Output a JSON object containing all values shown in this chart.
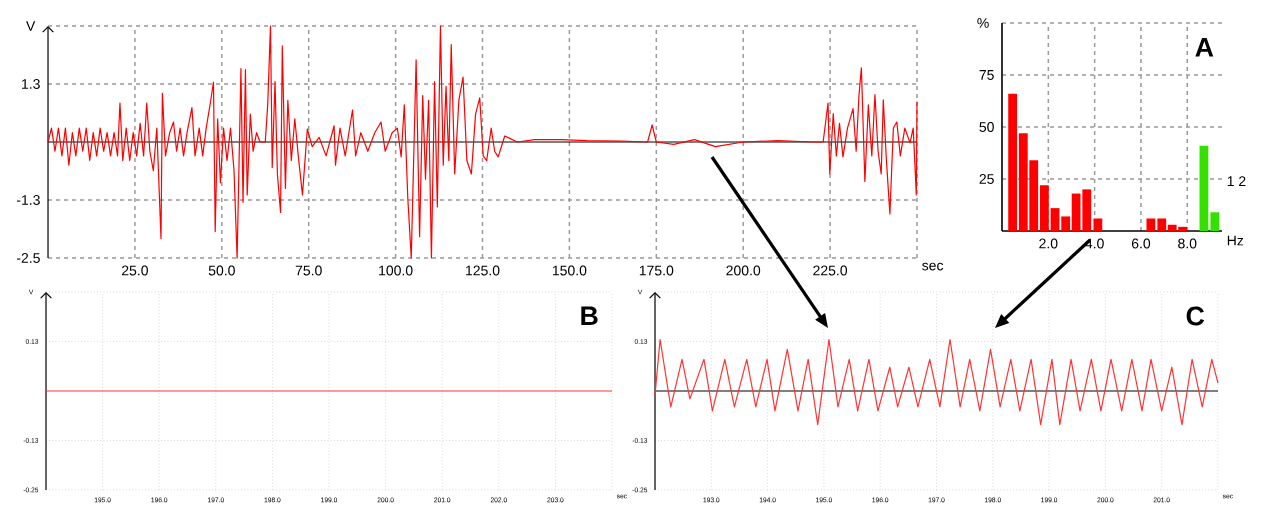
{
  "chart_data": [
    {
      "type": "line",
      "xlabel": "sec",
      "ylabel": "V",
      "grid": true,
      "xlim": [
        0,
        250
      ],
      "ylim": [
        -2.5,
        2.5
      ],
      "xticks": [
        {
          "value": 25,
          "label": "25.0"
        },
        {
          "value": 50,
          "label": "50.0"
        },
        {
          "value": 75,
          "label": "75.0"
        },
        {
          "value": 100,
          "label": "100.0"
        },
        {
          "value": 125,
          "label": "125.0"
        },
        {
          "value": 150,
          "label": "150.0"
        },
        {
          "value": 175,
          "label": "175.0"
        },
        {
          "value": 200,
          "label": "200.0"
        },
        {
          "value": 225,
          "label": "225.0"
        },
        {
          "value": 250,
          "label": null
        }
      ],
      "yticks": [
        -2.5,
        {
          "value": -1.25,
          "label": "-1.3"
        },
        {
          "value": 1.25,
          "label": "1.3"
        },
        {
          "value": 2.5,
          "label": null
        }
      ],
      "series": [
        {
          "color": "#ff0000",
          "x": [
            0,
            1,
            2,
            3,
            4,
            5,
            6,
            7,
            8,
            9,
            10,
            11,
            12,
            13,
            14,
            15,
            16,
            17,
            18,
            19,
            20,
            20.7,
            21.5,
            22.5,
            23.5,
            24.5,
            25.5,
            26.5,
            27.5,
            28.4,
            29.3,
            30.3,
            31.3,
            32.5,
            32.9,
            33.8,
            35,
            36.1,
            37,
            38,
            39,
            40,
            41.4,
            42.3,
            43.5,
            44.5,
            45.5,
            46.7,
            47.6,
            48.1,
            48.8,
            49.6,
            50.5,
            51.5,
            52.5,
            53.5,
            54.4,
            55.5,
            56.1,
            56.8,
            57.3,
            58.2,
            59,
            60,
            61,
            62.5,
            63.2,
            64,
            64.5,
            65.3,
            66,
            66.9,
            67.4,
            68.3,
            69,
            70,
            71,
            72,
            73.2,
            74.6,
            76,
            78,
            80,
            82.3,
            82.7,
            84,
            85.5,
            87.6,
            88.5,
            90,
            92,
            94,
            95.8,
            97,
            99,
            100.5,
            101.6,
            102.5,
            103.5,
            104.5,
            105.9,
            106.9,
            107.8,
            108.6,
            109.5,
            110.3,
            111.2,
            112,
            112.9,
            113.7,
            114.5,
            115.3,
            116,
            117,
            118.2,
            119.4,
            120.5,
            121.8,
            123,
            124.2,
            125.2,
            126.2,
            127.5,
            128.5,
            129.5,
            131.4,
            135,
            140,
            147.8,
            155,
            165,
            172.5,
            173.8,
            175,
            180,
            186,
            192,
            200,
            210,
            220,
            223,
            224.4,
            224.9,
            225.9,
            226.8,
            227.7,
            228.7,
            230,
            231.6,
            232.5,
            233.3,
            234,
            235,
            236,
            237,
            237.9,
            238.8,
            239.7,
            240.3,
            241.2,
            242.2,
            243.2,
            244.2,
            245.2,
            246.5,
            248,
            248.9,
            249.8,
            250
          ],
          "values": [
            0,
            0.3,
            -0.2,
            0.3,
            -0.3,
            0.3,
            -0.5,
            0.2,
            -0.3,
            0.3,
            -0.2,
            0.3,
            -0.4,
            0.2,
            -0.3,
            0.3,
            -0.2,
            0.2,
            -0.3,
            0.2,
            -0.3,
            0.84,
            -0.4,
            0.3,
            -0.4,
            0.2,
            -0.3,
            0.4,
            -0.3,
            0.84,
            -0.2,
            -0.62,
            0.3,
            -2.08,
            1.05,
            -0.3,
            0.2,
            0.43,
            -0.2,
            0.3,
            -0.3,
            0.2,
            0.74,
            -0.3,
            0.3,
            -0.3,
            0.3,
            0.84,
            1.29,
            -1.93,
            0.5,
            -0.88,
            0.3,
            -0.4,
            0.3,
            -0.6,
            -2.5,
            1.58,
            -1.3,
            1.56,
            -1.14,
            0.6,
            -0.2,
            0.2,
            0,
            0,
            0.8,
            2.5,
            -0.55,
            1.3,
            -0.7,
            -1.52,
            2.07,
            -1.0,
            0.9,
            -0.4,
            0.5,
            -0.3,
            -1.14,
            0.28,
            -0.1,
            0.1,
            -0.3,
            0.35,
            -0.5,
            0.3,
            -0.3,
            0.69,
            -0.3,
            0.2,
            -0.2,
            0.2,
            0.43,
            -0.2,
            0.2,
            0.3,
            -0.32,
            0.8,
            -1.2,
            -2.5,
            1.77,
            -2.04,
            1.0,
            -0.8,
            0.9,
            -2.5,
            1.3,
            -1.4,
            2.5,
            -0.5,
            1.2,
            -0.4,
            2.1,
            -0.69,
            0.9,
            1.4,
            -0.4,
            -0.69,
            0.6,
            0.95,
            -0.3,
            -0.4,
            0.3,
            -0.2,
            -0.32,
            0.13,
            0,
            0.05,
            0.05,
            0.03,
            0.02,
            0,
            0.37,
            0,
            -0.05,
            0.05,
            -0.1,
            0,
            0.03,
            0,
            0,
            0.84,
            -0.69,
            0.61,
            -0.3,
            0.4,
            -0.32,
            0.3,
            0.72,
            -0.2,
            1.0,
            1.6,
            -0.85,
            0.8,
            -0.3,
            1.02,
            -0.2,
            -0.69,
            0.91,
            -0.4,
            -1.55,
            0.3,
            0.43,
            -0.3,
            0.3,
            -0.02,
            0.3,
            -1.14,
            0.87
          ]
        }
      ]
    },
    {
      "type": "bar",
      "title": "A",
      "xlabel": "Hz",
      "ylabel": "%",
      "grid": true,
      "xlim": [
        0,
        9.5
      ],
      "ylim": [
        0,
        100
      ],
      "xticks": [
        {
          "value": 2,
          "label": "2.0"
        },
        {
          "value": 4,
          "label": "4.0"
        },
        {
          "value": 6,
          "label": "6.0"
        },
        {
          "value": 8,
          "label": "8.0"
        }
      ],
      "yticks": [
        25,
        50,
        75,
        {
          "value": 100,
          "label": null
        }
      ],
      "annotations": [
        "1 2"
      ],
      "series": [
        {
          "color": "#ff0000",
          "x": [
            0.46,
            0.92,
            1.37,
            1.83,
            2.29,
            2.75,
            3.2,
            3.66,
            4.14,
            6.43,
            6.9,
            7.35,
            7.8
          ],
          "values": [
            66,
            47,
            34,
            22,
            11,
            7,
            18,
            20,
            6,
            6,
            6,
            3,
            2
          ]
        },
        {
          "color": "#33e000",
          "x": [
            8.72,
            9.19
          ],
          "values": [
            41,
            9
          ]
        }
      ]
    },
    {
      "type": "line",
      "title": "B",
      "xlabel": "sec",
      "ylabel": "V",
      "grid": true,
      "xlim": [
        194,
        204
      ],
      "ylim": [
        -0.25,
        0.25
      ],
      "xticks": [
        {
          "value": 195,
          "label": "195.0"
        },
        {
          "value": 196,
          "label": "196.0"
        },
        {
          "value": 197,
          "label": "197.0"
        },
        {
          "value": 198,
          "label": "198.0"
        },
        {
          "value": 199,
          "label": "199.0"
        },
        {
          "value": 200,
          "label": "200.0"
        },
        {
          "value": 201,
          "label": "201.0"
        },
        {
          "value": 202,
          "label": "202.0"
        },
        {
          "value": 203,
          "label": "203.0"
        },
        {
          "value": 204,
          "label": null
        }
      ],
      "yticks": [
        -0.25,
        {
          "value": -0.125,
          "label": "-0.13"
        },
        {
          "value": 0.125,
          "label": "0.13"
        },
        {
          "value": 0.25,
          "label": null
        }
      ],
      "series": [
        {
          "color": "#ff3333",
          "x": [
            194,
            204
          ],
          "values": [
            0,
            0
          ]
        }
      ]
    },
    {
      "type": "line",
      "title": "C",
      "xlabel": "sec",
      "ylabel": "V",
      "grid": true,
      "xlim": [
        192,
        202
      ],
      "ylim": [
        -0.25,
        0.25
      ],
      "xticks": [
        {
          "value": 193,
          "label": "193.0"
        },
        {
          "value": 194,
          "label": "194.0"
        },
        {
          "value": 195,
          "label": "195.0"
        },
        {
          "value": 196,
          "label": "196.0"
        },
        {
          "value": 197,
          "label": "197.0"
        },
        {
          "value": 198,
          "label": "198.0"
        },
        {
          "value": 199,
          "label": "199.0"
        },
        {
          "value": 200,
          "label": "200.0"
        },
        {
          "value": 201,
          "label": "201.0"
        },
        {
          "value": 202,
          "label": null
        }
      ],
      "yticks": [
        -0.25,
        {
          "value": -0.125,
          "label": "-0.13"
        },
        {
          "value": 0.125,
          "label": "0.13"
        },
        {
          "value": 0.25,
          "label": null
        }
      ],
      "series": [
        {
          "color": "#ff3333",
          "x": [
            192,
            192.09,
            192.28,
            192.48,
            192.62,
            192.87,
            193.02,
            193.24,
            193.41,
            193.63,
            193.79,
            193.99,
            194.13,
            194.35,
            194.54,
            194.72,
            194.89,
            195.09,
            195.25,
            195.45,
            195.6,
            195.8,
            195.96,
            196.17,
            196.31,
            196.51,
            196.67,
            196.88,
            197.06,
            197.24,
            197.42,
            197.59,
            197.77,
            197.96,
            198.13,
            198.32,
            198.48,
            198.68,
            198.85,
            199.05,
            199.19,
            199.39,
            199.55,
            199.75,
            199.92,
            200.1,
            200.29,
            200.47,
            200.65,
            200.81,
            201,
            201.18,
            201.36,
            201.54,
            201.72,
            201.89,
            202
          ],
          "values": [
            -0.01,
            0.13,
            -0.04,
            0.08,
            -0.02,
            0.08,
            -0.05,
            0.08,
            -0.04,
            0.08,
            -0.04,
            0.08,
            -0.05,
            0.105,
            -0.05,
            0.08,
            -0.085,
            0.13,
            -0.04,
            0.08,
            -0.05,
            0.08,
            -0.05,
            0.06,
            -0.04,
            0.06,
            -0.04,
            0.08,
            -0.04,
            0.13,
            -0.04,
            0.08,
            -0.05,
            0.105,
            -0.04,
            0.08,
            -0.05,
            0.08,
            -0.085,
            0.08,
            -0.085,
            0.08,
            -0.05,
            0.08,
            -0.05,
            0.08,
            -0.05,
            0.08,
            -0.05,
            0.08,
            -0.05,
            0.06,
            -0.085,
            0.08,
            -0.04,
            0.08,
            0.02
          ]
        }
      ]
    }
  ]
}
